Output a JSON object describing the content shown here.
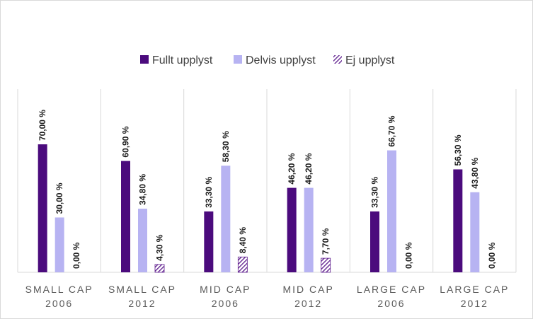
{
  "chart_data": {
    "type": "bar",
    "title": "",
    "xlabel": "",
    "ylabel": "",
    "ylim": [
      0,
      80
    ],
    "grid": false,
    "legend_position": "top-center",
    "categories": [
      [
        "SMALL CAP",
        "2006"
      ],
      [
        "SMALL CAP",
        "2012"
      ],
      [
        "MID CAP",
        "2006"
      ],
      [
        "MID CAP",
        "2012"
      ],
      [
        "LARGE CAP",
        "2006"
      ],
      [
        "LARGE CAP",
        "2012"
      ]
    ],
    "series": [
      {
        "name": "Fullt upplyst",
        "color": "#4b0b7d",
        "pattern": "solid",
        "values": [
          70.0,
          60.9,
          33.3,
          46.2,
          33.3,
          56.3
        ],
        "labels": [
          "70,00 %",
          "60,90 %",
          "33,30 %",
          "46,20 %",
          "33,30 %",
          "56,30 %"
        ]
      },
      {
        "name": "Delvis upplyst",
        "color": "#b7b3f2",
        "pattern": "solid",
        "values": [
          30.0,
          34.8,
          58.3,
          46.2,
          66.7,
          43.8
        ],
        "labels": [
          "30,00 %",
          "34,80 %",
          "58,30 %",
          "46,20 %",
          "66,70 %",
          "43,80 %"
        ]
      },
      {
        "name": "Ej upplyst",
        "color": "#5c1a8c",
        "pattern": "hatched",
        "values": [
          0.0,
          4.3,
          8.4,
          7.7,
          0.0,
          0.0
        ],
        "labels": [
          "0,00 %",
          "4,30 %",
          "8,40 %",
          "7,70 %",
          "0,00 %",
          "0,00 %"
        ]
      }
    ]
  }
}
